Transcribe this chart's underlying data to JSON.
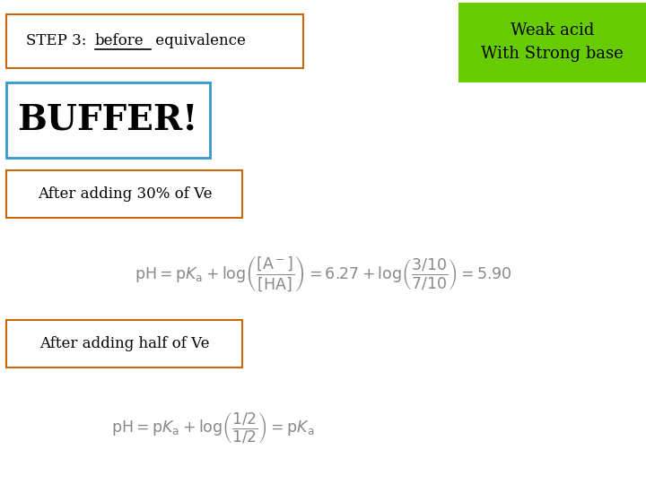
{
  "bg_color": "#ffffff",
  "title_box_text": "STEP 3: before equivalence",
  "title_box_edge": "#cc6600",
  "corner_box_text": "Weak acid\nWith Strong base",
  "corner_box_bg": "#66cc00",
  "corner_box_text_color": "#000000",
  "buffer_box_text": "BUFFER!",
  "buffer_box_edge": "#3399cc",
  "buffer_text_color": "#000000",
  "label1_text": "After adding 30% of Ve",
  "label1_box_edge": "#cc6600",
  "label2_text": "After adding half of Ve",
  "label2_box_edge": "#cc6600",
  "formula_color": "#888888"
}
